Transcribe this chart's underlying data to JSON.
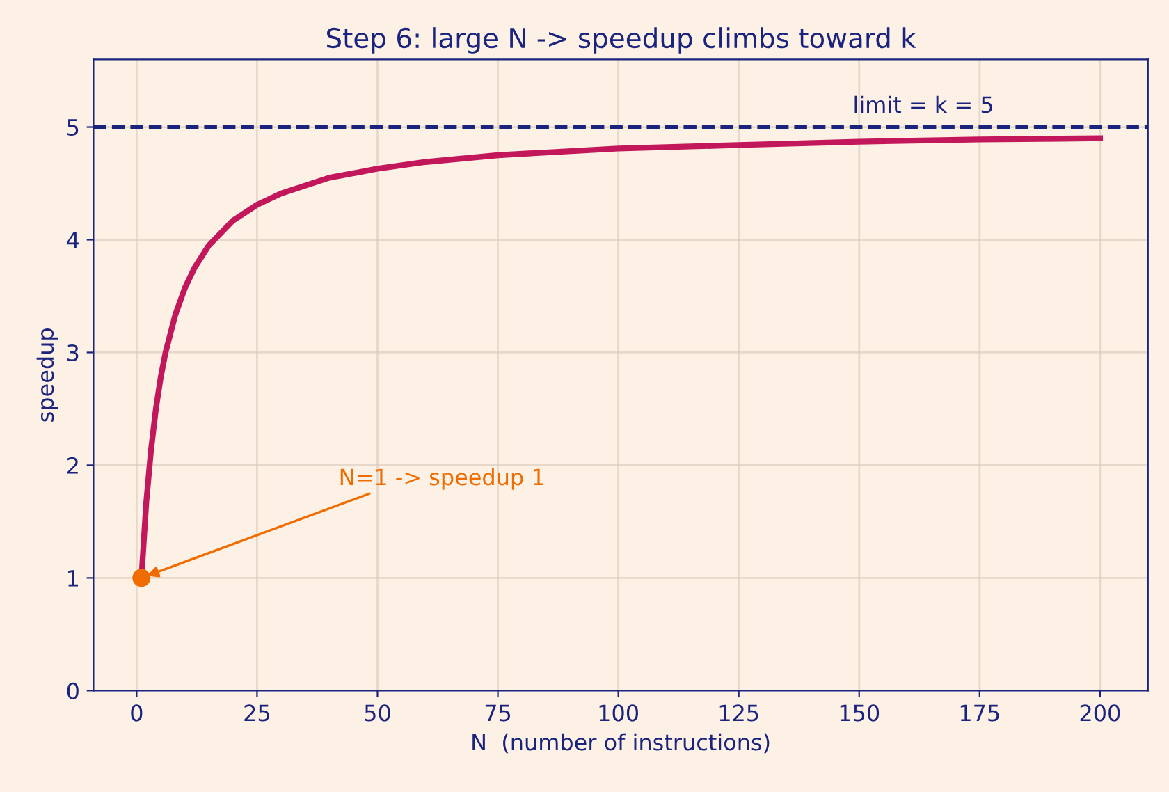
{
  "chart_data": {
    "type": "line",
    "title": "Step 6: large N -> speedup climbs toward k",
    "xlabel": "N  (number of instructions)",
    "ylabel": "speedup",
    "series": [
      {
        "color": "#c2185b",
        "x": [
          1,
          2,
          3,
          4,
          5,
          6,
          8,
          10,
          12,
          15,
          20,
          25,
          30,
          40,
          50,
          60,
          75,
          100,
          125,
          150,
          175,
          200
        ],
        "values": [
          1.0,
          1.67,
          2.14,
          2.5,
          2.78,
          3.0,
          3.33,
          3.57,
          3.75,
          3.95,
          4.17,
          4.31,
          4.41,
          4.55,
          4.63,
          4.69,
          4.75,
          4.81,
          4.84,
          4.87,
          4.89,
          4.9
        ]
      },
      {
        "type": "scatter",
        "color": "#ef6c00",
        "x": [
          1
        ],
        "values": [
          1.0
        ],
        "marker": "circle"
      }
    ],
    "ref_lines": [
      {
        "axis": "y",
        "value": 5,
        "label": "limit = k = 5",
        "color": "#1a237e",
        "line_style": "dashed"
      }
    ],
    "annotations": [
      {
        "text": "N=1 -> speedup 1",
        "x": 1,
        "y": 1
      }
    ],
    "xlim": [
      -8.95,
      209.95
    ],
    "ylim": [
      0,
      5.6
    ],
    "xticks": [
      0,
      25,
      50,
      75,
      100,
      125,
      150,
      175,
      200
    ],
    "yticks": [
      0,
      1,
      2,
      3,
      4,
      5
    ],
    "grid": true,
    "legend": false
  }
}
